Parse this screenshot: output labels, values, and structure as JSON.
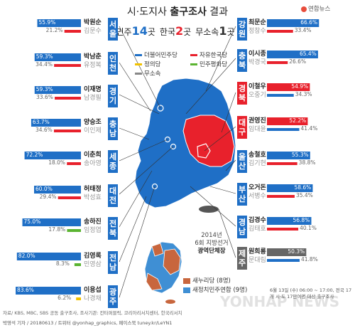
{
  "header": {
    "title_prefix": "시·도지사 ",
    "title_bold": "출구조사",
    "title_suffix": " 결과",
    "summary": [
      {
        "label": "민주",
        "count": "14",
        "unit": "곳",
        "color": "#1f6fc6"
      },
      {
        "label": "한국",
        "count": "2",
        "unit": "곳",
        "color": "#e8212c"
      },
      {
        "label": "무소속",
        "count": "1",
        "unit": "곳",
        "color": "#333333"
      }
    ],
    "logo": "연합뉴스"
  },
  "legend": [
    {
      "label": "더불어민주당",
      "color": "#1f6fc6"
    },
    {
      "label": "자유한국당",
      "color": "#e8212c"
    },
    {
      "label": "정의당",
      "color": "#f2c200"
    },
    {
      "label": "민주평화당",
      "color": "#5bb431"
    },
    {
      "label": "무소속",
      "color": "#888888"
    }
  ],
  "chart_data": {
    "type": "bar",
    "title": "시·도지사 출구조사 결과",
    "regions": [
      {
        "region": "서울",
        "winner": {
          "name": "박원순",
          "party": "더불어민주당",
          "value": 55.9
        },
        "runner": {
          "name": "김문수",
          "party": "자유한국당",
          "value": 21.2
        }
      },
      {
        "region": "인천",
        "winner": {
          "name": "박남춘",
          "party": "더불어민주당",
          "value": 59.3
        },
        "runner": {
          "name": "유정복",
          "party": "자유한국당",
          "value": 34.4
        }
      },
      {
        "region": "경기",
        "winner": {
          "name": "이재명",
          "party": "더불어민주당",
          "value": 59.3
        },
        "runner": {
          "name": "남경필",
          "party": "자유한국당",
          "value": 33.6
        }
      },
      {
        "region": "충남",
        "winner": {
          "name": "양승조",
          "party": "더불어민주당",
          "value": 63.7
        },
        "runner": {
          "name": "이인제",
          "party": "자유한국당",
          "value": 34.6
        }
      },
      {
        "region": "세종",
        "winner": {
          "name": "이춘희",
          "party": "더불어민주당",
          "value": 72.2
        },
        "runner": {
          "name": "송아영",
          "party": "자유한국당",
          "value": 18.0
        }
      },
      {
        "region": "대전",
        "winner": {
          "name": "허태정",
          "party": "더불어민주당",
          "value": 60.0
        },
        "runner": {
          "name": "박성효",
          "party": "자유한국당",
          "value": 29.4
        }
      },
      {
        "region": "전북",
        "winner": {
          "name": "송하진",
          "party": "더불어민주당",
          "value": 75.0
        },
        "runner": {
          "name": "임정엽",
          "party": "민주평화당",
          "value": 17.8
        }
      },
      {
        "region": "전남",
        "winner": {
          "name": "김영록",
          "party": "더불어민주당",
          "value": 82.0
        },
        "runner": {
          "name": "민영삼",
          "party": "민주평화당",
          "value": 8.3
        }
      },
      {
        "region": "광주",
        "winner": {
          "name": "이용섭",
          "party": "더불어민주당",
          "value": 83.6
        },
        "runner": {
          "name": "나경채",
          "party": "정의당",
          "value": 6.2
        }
      },
      {
        "region": "강원",
        "winner": {
          "name": "최문순",
          "party": "더불어민주당",
          "value": 66.6
        },
        "runner": {
          "name": "정창수",
          "party": "자유한국당",
          "value": 33.4
        }
      },
      {
        "region": "충북",
        "winner": {
          "name": "이시종",
          "party": "더불어민주당",
          "value": 65.4
        },
        "runner": {
          "name": "박경국",
          "party": "자유한국당",
          "value": 26.6
        }
      },
      {
        "region": "경북",
        "winner": {
          "name": "이철우",
          "party": "자유한국당",
          "value": 54.9
        },
        "runner": {
          "name": "오중기",
          "party": "더불어민주당",
          "value": 34.3
        }
      },
      {
        "region": "대구",
        "winner": {
          "name": "권영진",
          "party": "자유한국당",
          "value": 52.2
        },
        "runner": {
          "name": "임대윤",
          "party": "더불어민주당",
          "value": 41.4
        }
      },
      {
        "region": "울산",
        "winner": {
          "name": "송철호",
          "party": "더불어민주당",
          "value": 55.3
        },
        "runner": {
          "name": "김기현",
          "party": "자유한국당",
          "value": 38.8
        }
      },
      {
        "region": "부산",
        "winner": {
          "name": "오거돈",
          "party": "더불어민주당",
          "value": 58.6
        },
        "runner": {
          "name": "서병수",
          "party": "자유한국당",
          "value": 35.4
        }
      },
      {
        "region": "경남",
        "winner": {
          "name": "김경수",
          "party": "더불어민주당",
          "value": 56.8
        },
        "runner": {
          "name": "김태호",
          "party": "자유한국당",
          "value": 40.1
        }
      },
      {
        "region": "제주",
        "winner": {
          "name": "원희룡",
          "party": "무소속",
          "value": 50.3
        },
        "runner": {
          "name": "문대림",
          "party": "더불어민주당",
          "value": 41.8
        }
      }
    ],
    "party_colors": {
      "더불어민주당": "#1f6fc6",
      "자유한국당": "#e8212c",
      "정의당": "#f2c200",
      "민주평화당": "#5bb431",
      "무소속": "#666666"
    },
    "value_unit": "%",
    "xlim": [
      0,
      100
    ]
  },
  "inset": {
    "title_1": "2014년",
    "title_2": "6회 지방선거",
    "title_3": "광역단체장",
    "legend": [
      {
        "label": "새누리당 (8명)",
        "color": "#c8663d"
      },
      {
        "label": "새정치민주연합 (9명)",
        "color": "#3f8fd4"
      }
    ]
  },
  "footer": {
    "note": "6월 13일 (수) 06:00 ~ 17:00, 전국 17개 시·도 17만여명 대상 출구조사",
    "source": "자료/ KBS, MBC, SBS 공동 출구조사, 조사기관: 칸타퍼블릭, 코리아리서치센터, 한국리서치",
    "credit": "박영석 기자 / 20180613 / 트위터 @yonhap_graphics, 페이스북 tuney.kr/LeYN1",
    "watermark": "YONHAP NEWS"
  }
}
